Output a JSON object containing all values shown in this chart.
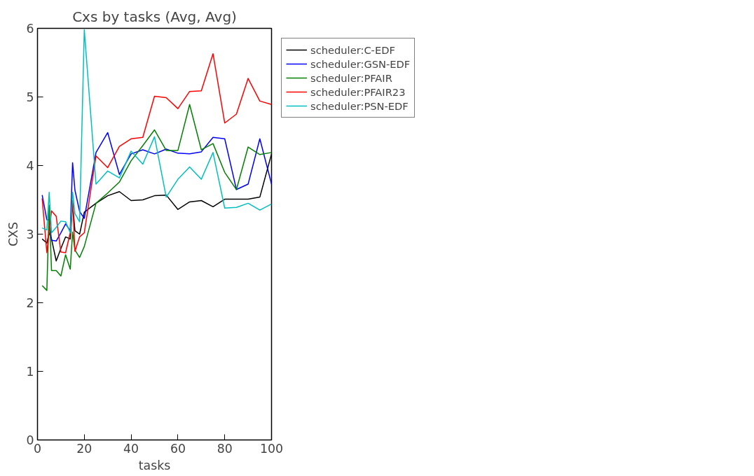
{
  "chart_data": {
    "type": "line",
    "title": "Cxs by tasks (Avg, Avg)",
    "xlabel": "tasks",
    "ylabel": "CXS",
    "x": [
      2,
      4,
      5,
      6,
      8,
      10,
      12,
      14,
      15,
      16,
      18,
      20,
      25,
      30,
      35,
      40,
      45,
      50,
      55,
      60,
      65,
      70,
      75,
      80,
      85,
      90,
      95,
      100
    ],
    "xlim": [
      0,
      100
    ],
    "xticks": [
      0,
      20,
      40,
      60,
      80,
      100
    ],
    "ylim": [
      0,
      6
    ],
    "yticks": [
      0,
      1,
      2,
      3,
      4,
      5,
      6
    ],
    "grid": false,
    "legend": "top right",
    "marker": "none",
    "line_style": "solid",
    "series": [
      {
        "name": "scheduler:C-EDF",
        "color": "#000000",
        "values": [
          2.93,
          2.87,
          3.02,
          2.93,
          2.61,
          2.79,
          2.96,
          2.93,
          3.45,
          3.05,
          3.0,
          3.32,
          3.45,
          3.56,
          3.62,
          3.49,
          3.5,
          3.56,
          3.57,
          3.36,
          3.47,
          3.49,
          3.4,
          3.51,
          3.51,
          3.51,
          3.54,
          4.17
        ]
      },
      {
        "name": "scheduler:GSN-EDF",
        "color": "#0000ff",
        "values": [
          3.57,
          3.21,
          3.21,
          2.91,
          2.9,
          3.02,
          3.15,
          3.05,
          4.04,
          3.64,
          3.33,
          3.23,
          4.19,
          4.48,
          3.87,
          4.17,
          4.23,
          4.17,
          4.24,
          4.18,
          4.17,
          4.2,
          4.41,
          4.39,
          3.65,
          3.73,
          4.39,
          3.73
        ]
      },
      {
        "name": "scheduler:PFAIR",
        "color": "#008000",
        "values": [
          2.25,
          2.18,
          3.42,
          2.47,
          2.47,
          2.39,
          2.7,
          2.49,
          3.03,
          2.77,
          2.66,
          2.82,
          3.45,
          3.6,
          3.76,
          4.07,
          4.29,
          4.52,
          4.22,
          4.22,
          4.89,
          4.23,
          4.32,
          3.9,
          3.65,
          4.27,
          4.16,
          4.19
        ]
      },
      {
        "name": "scheduler:PFAIR23",
        "color": "#ff0000",
        "values": [
          3.52,
          2.73,
          3.05,
          3.34,
          3.26,
          2.74,
          2.73,
          3.02,
          3.49,
          2.75,
          2.96,
          3.02,
          4.14,
          3.97,
          4.28,
          4.39,
          4.41,
          5.01,
          4.99,
          4.83,
          5.08,
          5.09,
          5.63,
          4.62,
          4.75,
          5.27,
          4.94,
          4.89
        ]
      },
      {
        "name": "scheduler:PSN-EDF",
        "color": "#00bfbf",
        "values": [
          3.09,
          3.06,
          3.61,
          3.02,
          3.1,
          3.19,
          3.18,
          3.02,
          3.61,
          3.3,
          3.18,
          5.98,
          3.73,
          3.92,
          3.82,
          4.21,
          4.02,
          4.42,
          3.54,
          3.8,
          3.98,
          3.8,
          4.19,
          3.38,
          3.39,
          3.45,
          3.35,
          3.44
        ]
      }
    ]
  }
}
